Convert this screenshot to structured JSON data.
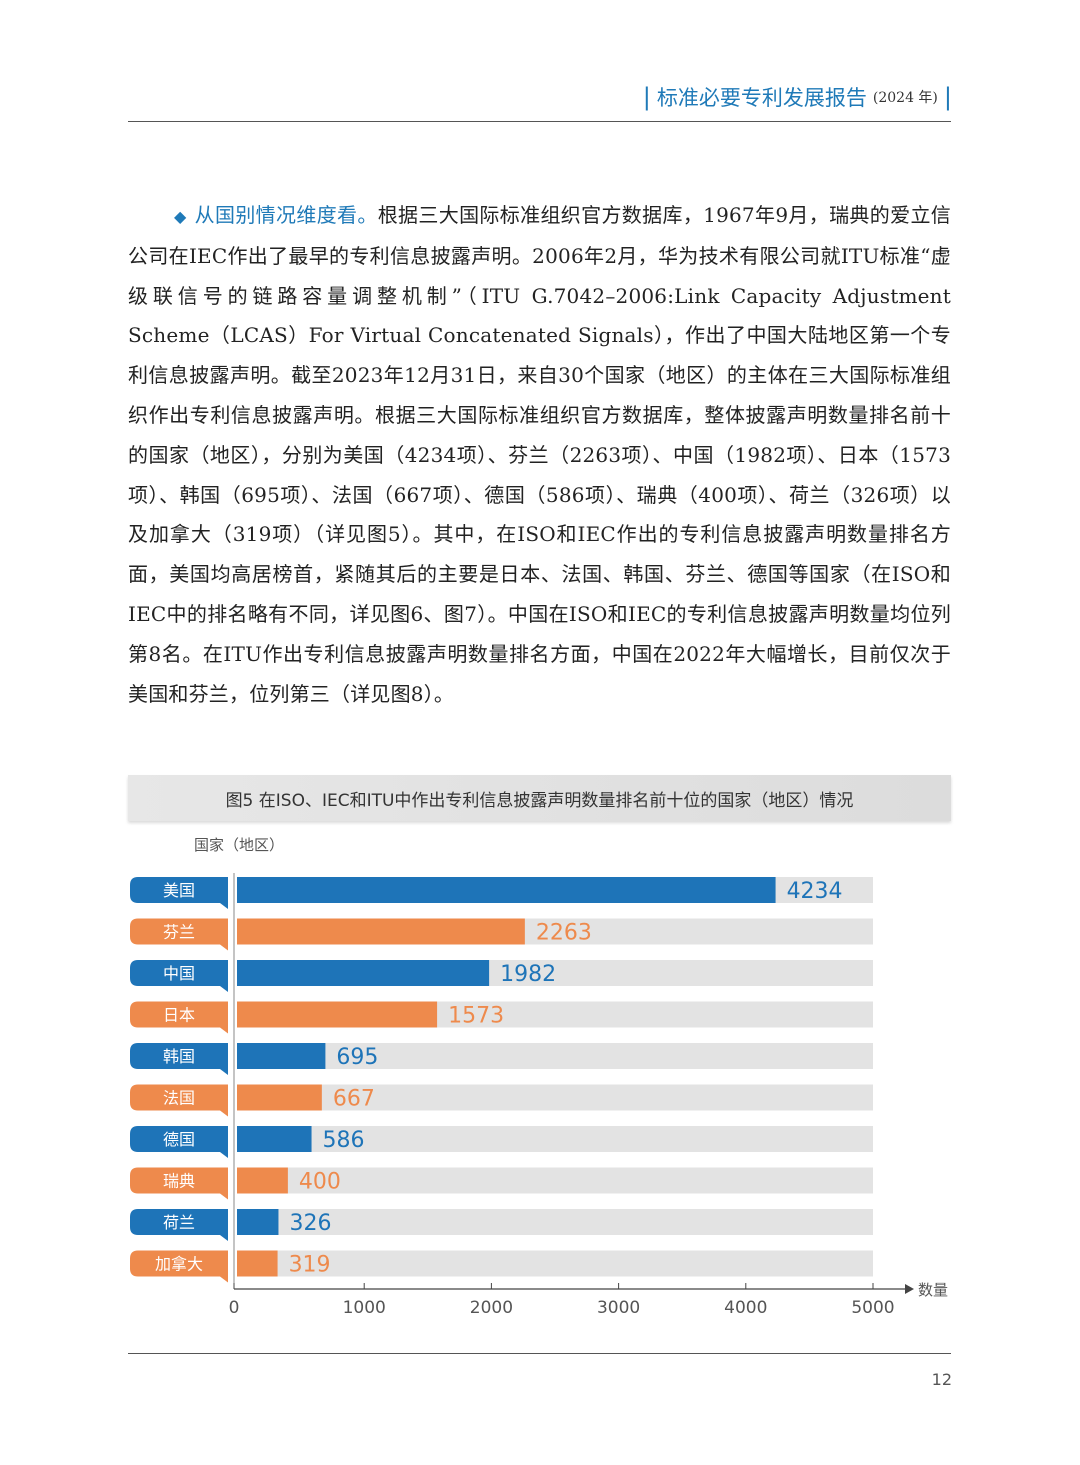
{
  "header": {
    "title": "标准必要专利发展报告",
    "year": "(2024 年)"
  },
  "body": {
    "lead": "从国别情况维度看。",
    "text": "根据三大国际标准组织官方数据库，1967年9月，瑞典的爱立信公司在IEC作出了最早的专利信息披露声明。2006年2月，华为技术有限公司就ITU标准“虚级联信号的链路容量调整机制”（ITU G.7042–2006:Link Capacity Adjustment Scheme（LCAS）For Virtual Concatenated Signals），作出了中国大陆地区第一个专利信息披露声明。截至2023年12月31日，来自30个国家（地区）的主体在三大国际标准组织作出专利信息披露声明。根据三大国际标准组织官方数据库，整体披露声明数量排名前十的国家（地区），分别为美国（4234项）、芬兰（2263项）、中国（1982项）、日本（1573项）、韩国（695项）、法国（667项）、德国（586项）、瑞典（400项）、荷兰（326项）以及加拿大（319项）（详见图5）。其中，在ISO和IEC作出的专利信息披露声明数量排名方面，美国均高居榜首，紧随其后的主要是日本、法国、韩国、芬兰、德国等国家（在ISO和IEC中的排名略有不同，详见图6、图7）。中国在ISO和IEC的专利信息披露声明数量均位列第8名。在ITU作出专利信息披露声明数量排名方面，中国在2022年大幅增长，目前仅次于美国和芬兰，位列第三（详见图8）。"
  },
  "figure": {
    "caption": "图5  在ISO、IEC和ITU中作出专利信息披露声明数量排名前十位的国家（地区）情况"
  },
  "chart_data": {
    "type": "bar",
    "orientation": "horizontal",
    "categories": [
      "美国",
      "芬兰",
      "中国",
      "日本",
      "韩国",
      "法国",
      "德国",
      "瑞典",
      "荷兰",
      "加拿大"
    ],
    "values": [
      4234,
      2263,
      1982,
      1573,
      695,
      667,
      586,
      400,
      326,
      319
    ],
    "ylabel": "国家（地区）",
    "xlabel": "数量",
    "xlim": [
      0,
      5000
    ],
    "xticks": [
      0,
      1000,
      2000,
      3000,
      4000,
      5000
    ],
    "colors": {
      "blue": "#1e74b8",
      "orange": "#ee8a4c",
      "track": "#e3e3e3"
    }
  },
  "footer": {
    "page_number": "12"
  }
}
